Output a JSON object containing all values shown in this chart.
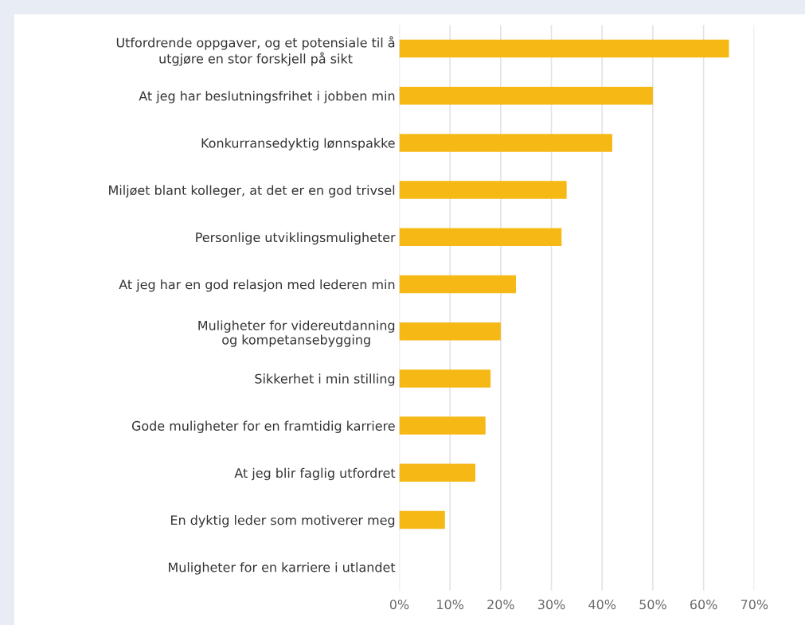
{
  "chart_data": {
    "type": "bar",
    "orientation": "horizontal",
    "categories": [
      "Utfordrende oppgaver, og et potensiale til å\nutgjøre en stor forskjell på sikt",
      "At jeg har beslutningsfrihet i jobben min",
      "Konkurransedyktig lønnspakke",
      "Miljøet blant kolleger, at det er en god trivsel",
      "Personlige utviklingsmuligheter",
      "At jeg har en god relasjon med lederen min",
      "Muligheter for videreutdanning\nog kompetansebygging",
      "Sikkerhet i min stilling",
      "Gode muligheter for en framtidig karriere",
      "At jeg blir faglig utfordret",
      "En dyktig leder som motiverer meg",
      "Muligheter for en karriere i utlandet"
    ],
    "values": [
      65,
      50,
      42,
      33,
      32,
      23,
      20,
      18,
      17,
      15,
      9,
      0
    ],
    "color": "#f5b814",
    "xlim": [
      0,
      70
    ],
    "xticks": [
      {
        "value": 0,
        "label": "0%"
      },
      {
        "value": 10,
        "label": "10%"
      },
      {
        "value": 20,
        "label": "20%"
      },
      {
        "value": 30,
        "label": "30%"
      },
      {
        "value": 40,
        "label": "40%"
      },
      {
        "value": 50,
        "label": "50%"
      },
      {
        "value": 60,
        "label": "60%"
      },
      {
        "value": 70,
        "label": "70%"
      }
    ],
    "grid": "x"
  }
}
